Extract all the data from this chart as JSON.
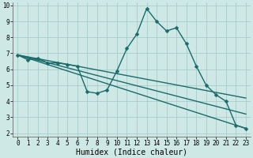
{
  "title": "",
  "xlabel": "Humidex (Indice chaleur)",
  "ylabel": "",
  "xlim": [
    -0.5,
    23.5
  ],
  "ylim": [
    1.8,
    10.2
  ],
  "xticks": [
    0,
    1,
    2,
    3,
    4,
    5,
    6,
    7,
    8,
    9,
    10,
    11,
    12,
    13,
    14,
    15,
    16,
    17,
    18,
    19,
    20,
    21,
    22,
    23
  ],
  "yticks": [
    2,
    3,
    4,
    5,
    6,
    7,
    8,
    9,
    10
  ],
  "bg_color": "#cde8e5",
  "grid_color": "#a8ccca",
  "line_color": "#1a6b6b",
  "line_width": 1.0,
  "marker": "D",
  "marker_size": 2.5,
  "lines": [
    {
      "x": [
        0,
        1,
        2,
        3,
        4,
        5,
        6,
        7,
        8,
        9,
        10,
        11,
        12,
        13,
        14,
        15,
        16,
        17,
        18,
        19,
        20,
        21,
        22,
        23
      ],
      "y": [
        6.9,
        6.6,
        6.7,
        6.4,
        6.4,
        6.3,
        6.2,
        4.6,
        4.5,
        4.7,
        5.9,
        7.3,
        8.2,
        9.8,
        9.0,
        8.4,
        8.6,
        7.6,
        6.2,
        5.0,
        4.4,
        4.0,
        2.5,
        2.3
      ],
      "has_markers": true
    },
    {
      "x": [
        0,
        23
      ],
      "y": [
        6.9,
        2.3
      ],
      "has_markers": false
    },
    {
      "x": [
        0,
        23
      ],
      "y": [
        6.9,
        3.2
      ],
      "has_markers": false
    },
    {
      "x": [
        0,
        23
      ],
      "y": [
        6.9,
        4.2
      ],
      "has_markers": false
    }
  ],
  "font_family": "monospace",
  "tick_fontsize": 5.5,
  "xlabel_fontsize": 7
}
